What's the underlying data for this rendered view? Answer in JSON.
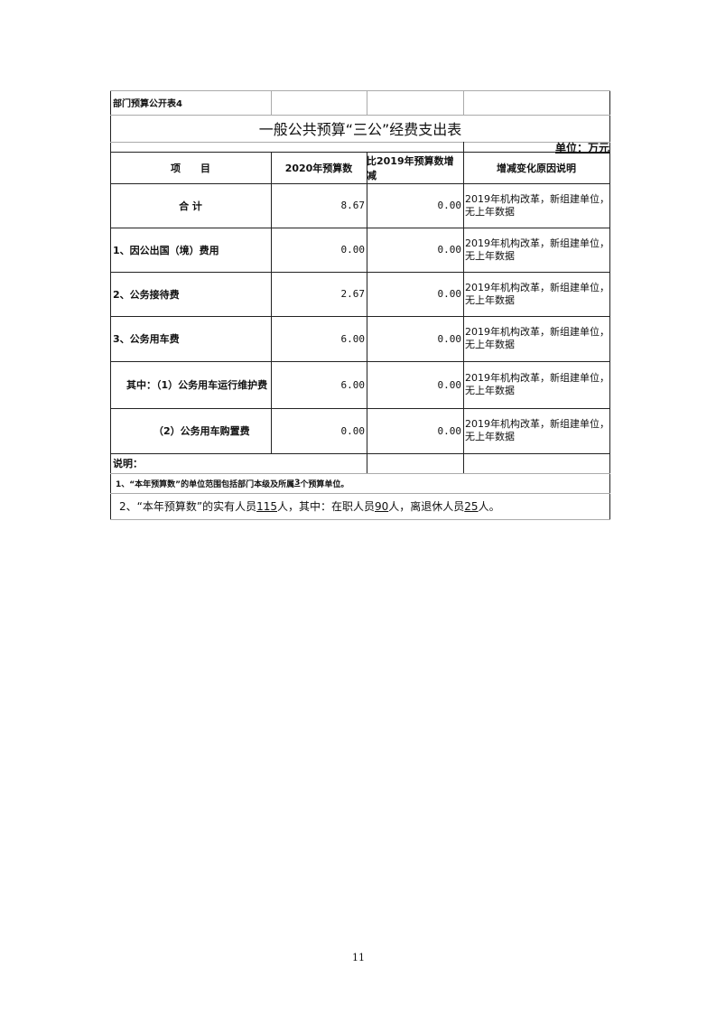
{
  "table_code": "部门预算公开表4",
  "title": "一般公共预算“三公”经费支出表",
  "unit": "单位：万元",
  "columns": [
    "项　　目",
    "2020年预算数",
    "比2019年预算数增减",
    "增减变化原因说明"
  ],
  "rows": [
    {
      "item": "合 计",
      "budget": "8.67",
      "change": "0.00",
      "reason": "2019年机构改革，新组建单位，无上年数据"
    },
    {
      "item": "1、因公出国（境）费用",
      "budget": "0.00",
      "change": "0.00",
      "reason": "2019年机构改革，新组建单位，无上年数据"
    },
    {
      "item": "2、公务接待费",
      "budget": "2.67",
      "change": "0.00",
      "reason": "2019年机构改革，新组建单位，无上年数据"
    },
    {
      "item": "3、公务用车费",
      "budget": "6.00",
      "change": "0.00",
      "reason": "2019年机构改革，新组建单位，无上年数据"
    },
    {
      "item": "其中：（1）公务用车运行维护费",
      "budget": "6.00",
      "change": "0.00",
      "reason": "2019年机构改革，新组建单位，无上年数据"
    },
    {
      "item": "（2）公务用车购置费",
      "budget": "0.00",
      "change": "0.00",
      "reason": "2019年机构改革，新组建单位，无上年数据"
    }
  ],
  "notes": {
    "heading": "说明：",
    "note1": {
      "pre": "1、“本年预算数”的单位范围包括部门本级及所属",
      "count": "3",
      "post": "个预算单位。"
    },
    "note2": {
      "pre": "2、“本年预算数”的实有人员",
      "total": "115",
      "t1": "人，其中：在职人员",
      "active": "90",
      "t2": "人，离退休人员",
      "retired": "25",
      "t3": "人。"
    }
  },
  "page_number": "11"
}
